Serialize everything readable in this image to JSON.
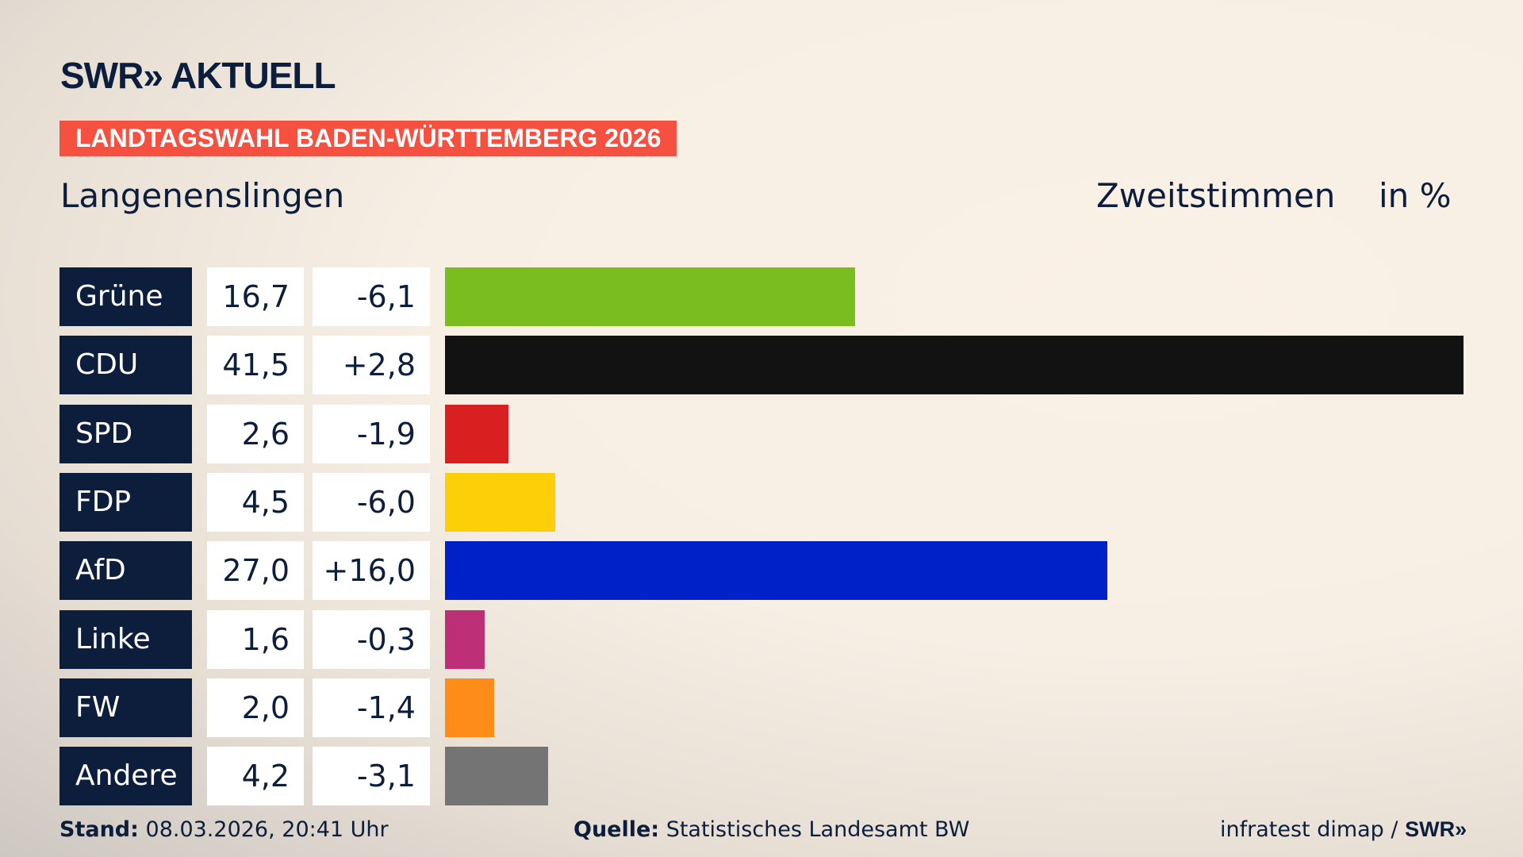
{
  "header": {
    "logo": "SWR» AKTUELL",
    "banner": "LANDTAGSWAHL BADEN-WÜRTTEMBERG 2026",
    "location": "Langenenslingen",
    "measure": "Zweitstimmen",
    "unit": "in %"
  },
  "chart_data": {
    "type": "bar",
    "orientation": "horizontal",
    "title": "Zweitstimmen",
    "unit": "in %",
    "categories": [
      "Grüne",
      "CDU",
      "SPD",
      "FDP",
      "AfD",
      "Linke",
      "FW",
      "Andere"
    ],
    "values": [
      16.7,
      41.5,
      2.6,
      4.5,
      27.0,
      1.6,
      2.0,
      4.2
    ],
    "value_labels": [
      "16,7",
      "41,5",
      "2,6",
      "4,5",
      "27,0",
      "1,6",
      "2,0",
      "4,2"
    ],
    "change_labels": [
      "-6,1",
      "+2,8",
      "-1,9",
      "-6,0",
      "+16,0",
      "-0,3",
      "-1,4",
      "-3,1"
    ],
    "changes": [
      -6.1,
      2.8,
      -1.9,
      -6.0,
      16.0,
      -0.3,
      -1.4,
      -3.1
    ],
    "colors": [
      "#7abd1f",
      "#121212",
      "#d91f1f",
      "#fdcf08",
      "#0020c8",
      "#bd2f76",
      "#fe8c18",
      "#747474"
    ]
  },
  "footer": {
    "stand_label": "Stand:",
    "stand": "08.03.2026, 20:41 Uhr",
    "source_label": "Quelle:",
    "source": "Statistisches Landesamt BW",
    "credit": "infratest dimap / ",
    "credit_logo": "SWR»"
  }
}
